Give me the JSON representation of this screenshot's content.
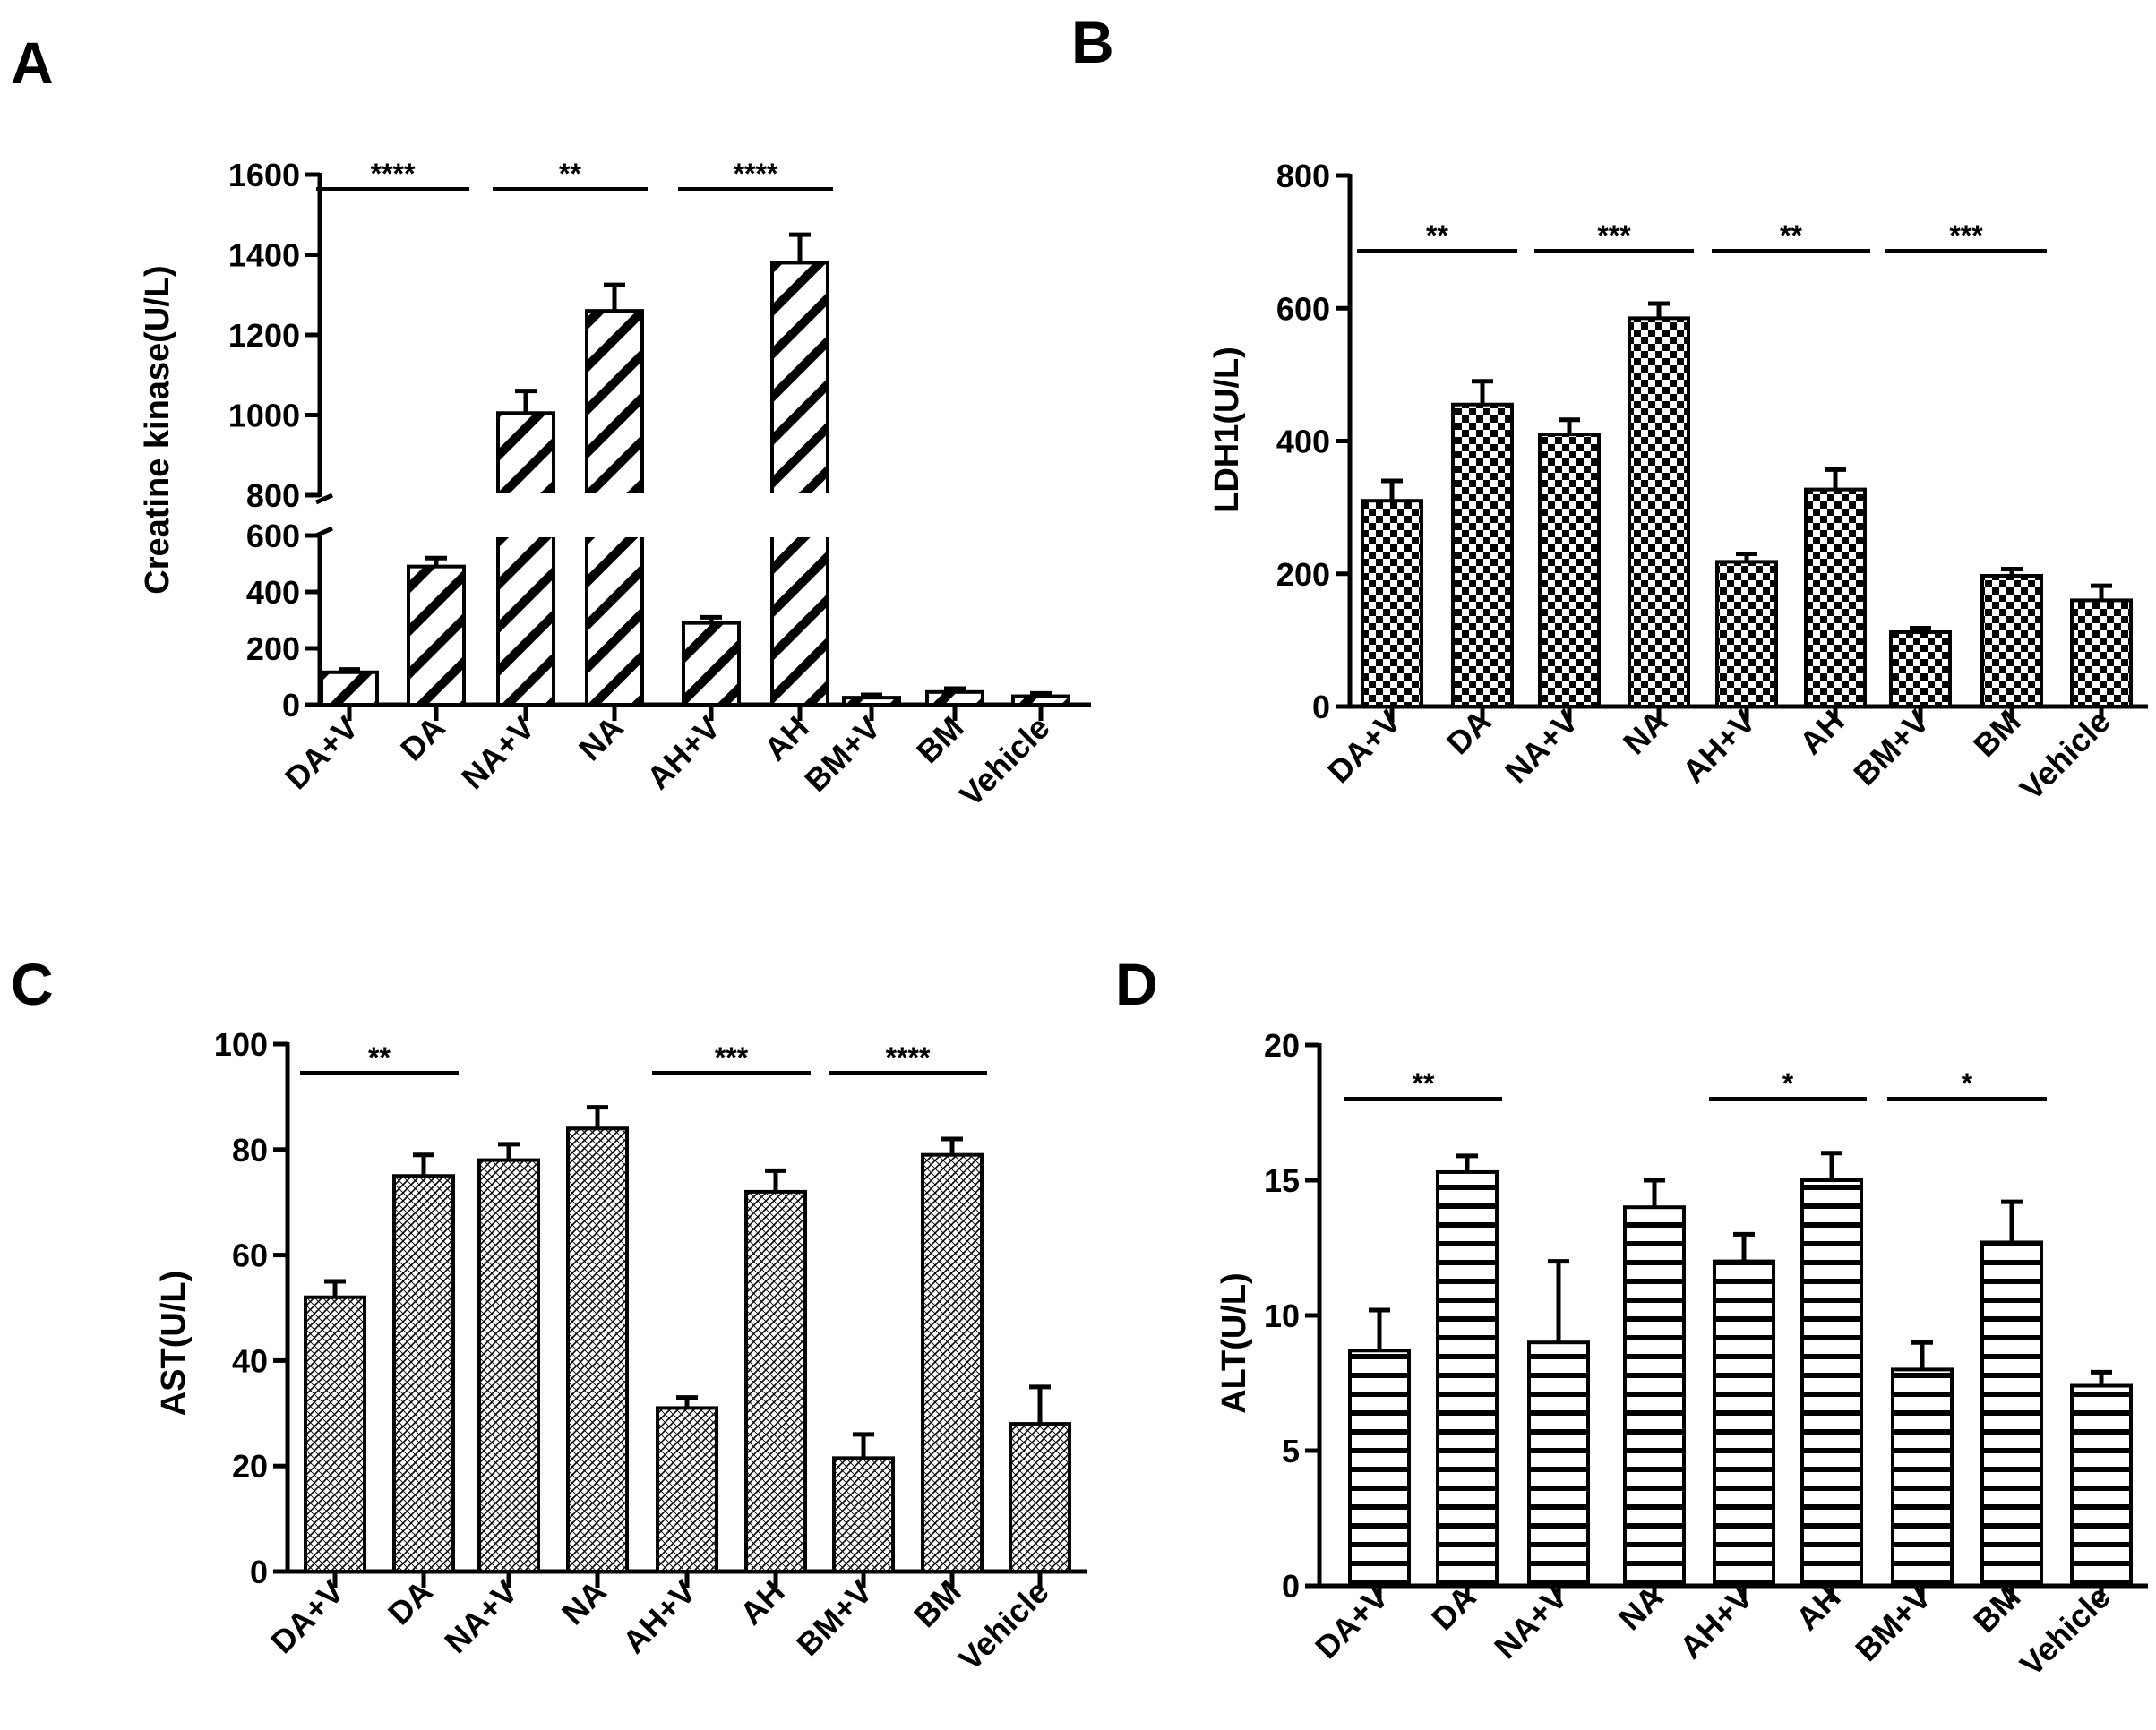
{
  "figure": {
    "colors": {
      "ink": "#000000",
      "background": "#ffffff"
    },
    "panels": [
      "A",
      "B",
      "C",
      "D"
    ]
  },
  "chart_data": [
    {
      "panel": "A",
      "type": "bar",
      "title": "",
      "xlabel": "",
      "ylabel": "Creatine kinase(U/L)",
      "categories": [
        "DA+V",
        "DA",
        "NA+V",
        "NA",
        "AH+V",
        "AH",
        "BM+V",
        "BM",
        "Vehicle"
      ],
      "values": [
        115,
        490,
        1005,
        1260,
        290,
        1380,
        25,
        45,
        30
      ],
      "errors": [
        10,
        30,
        55,
        65,
        20,
        70,
        10,
        12,
        10
      ],
      "broken_axis": {
        "lower": [
          0,
          600
        ],
        "upper": [
          800,
          1600
        ]
      },
      "yticks_lower": [
        0,
        200,
        400,
        600
      ],
      "yticks_upper": [
        800,
        1000,
        1200,
        1400,
        1600
      ],
      "pattern": "diagonal-stripes",
      "significance": [
        {
          "from": 0,
          "to": 1,
          "label": "****"
        },
        {
          "from": 2,
          "to": 3,
          "label": "**"
        },
        {
          "from": 4,
          "to": 5,
          "label": "****"
        }
      ]
    },
    {
      "panel": "B",
      "type": "bar",
      "title": "",
      "xlabel": "",
      "ylabel": "LDH1(U/L)",
      "categories": [
        "DA+V",
        "DA",
        "NA+V",
        "NA",
        "AH+V",
        "AH",
        "BM+V",
        "BM",
        "Vehicle"
      ],
      "values": [
        310,
        455,
        410,
        585,
        218,
        327,
        112,
        197,
        160
      ],
      "errors": [
        30,
        35,
        22,
        22,
        12,
        30,
        6,
        10,
        22
      ],
      "ylim": [
        0,
        800
      ],
      "yticks": [
        0,
        200,
        400,
        600,
        800
      ],
      "pattern": "checkerboard",
      "significance": [
        {
          "from": 0,
          "to": 1,
          "label": "**"
        },
        {
          "from": 2,
          "to": 3,
          "label": "***"
        },
        {
          "from": 4,
          "to": 5,
          "label": "**"
        },
        {
          "from": 6,
          "to": 7,
          "label": "***"
        }
      ]
    },
    {
      "panel": "C",
      "type": "bar",
      "title": "",
      "xlabel": "",
      "ylabel": "AST(U/L)",
      "categories": [
        "DA+V",
        "DA",
        "NA+V",
        "NA",
        "AH+V",
        "AH",
        "BM+V",
        "BM",
        "Vehicle"
      ],
      "values": [
        52,
        75,
        78,
        84,
        31,
        72,
        21.5,
        79,
        28
      ],
      "errors": [
        3,
        4,
        3,
        4,
        2,
        4,
        4.5,
        3,
        7
      ],
      "ylim": [
        0,
        100
      ],
      "yticks": [
        0,
        20,
        40,
        60,
        80,
        100
      ],
      "pattern": "crosshatch",
      "significance": [
        {
          "from": 0,
          "to": 1,
          "label": "**"
        },
        {
          "from": 4,
          "to": 5,
          "label": "***"
        },
        {
          "from": 6,
          "to": 7,
          "label": "****"
        }
      ]
    },
    {
      "panel": "D",
      "type": "bar",
      "title": "",
      "xlabel": "",
      "ylabel": "ALT(U/L)",
      "categories": [
        "DA+V",
        "DA",
        "NA+V",
        "NA",
        "AH+V",
        "AH",
        "BM+V",
        "BM",
        "Vehicle"
      ],
      "values": [
        8.7,
        15.3,
        9.0,
        14.0,
        12.0,
        15.0,
        8.0,
        12.7,
        7.4
      ],
      "errors": [
        1.5,
        0.6,
        3.0,
        1.0,
        1.0,
        1.0,
        1.0,
        1.5,
        0.5
      ],
      "ylim": [
        0,
        20
      ],
      "yticks": [
        0,
        5,
        10,
        15,
        20
      ],
      "pattern": "horizontal-stripes",
      "significance": [
        {
          "from": 0,
          "to": 1,
          "label": "**"
        },
        {
          "from": 4,
          "to": 5,
          "label": "*"
        },
        {
          "from": 6,
          "to": 7,
          "label": "*"
        }
      ]
    }
  ]
}
